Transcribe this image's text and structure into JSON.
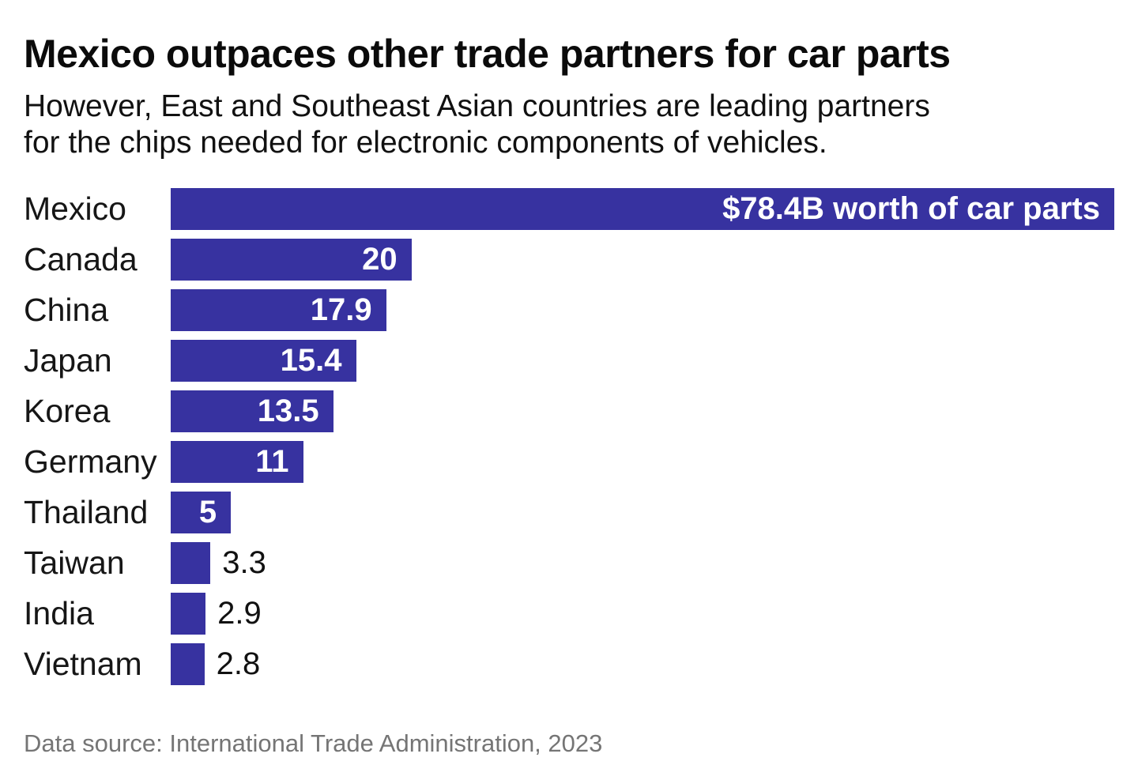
{
  "title": "Mexico outpaces other trade partners for car parts",
  "subtitle": {
    "full": "However, East and Southeast Asian countries are leading partners for the chips needed for electronic components of vehicles.",
    "lines": [
      "However, East and Southeast Asian countries are leading partners",
      "for the chips needed for electronic components of vehicles."
    ]
  },
  "source": "Data source: International Trade Administration, 2023",
  "colors": {
    "bar": "#3732a0",
    "value_inside_text": "#ffffff",
    "value_outside_text": "#111111",
    "category_text": "#161616",
    "title_text": "#0b0b0b",
    "source_text": "#757575",
    "background": "#ffffff"
  },
  "chart_data": {
    "type": "bar",
    "orientation": "horizontal",
    "title": "Mexico outpaces other trade partners for car parts",
    "xlim": [
      0,
      78.4
    ],
    "grid": false,
    "legend": false,
    "categories": [
      "Mexico",
      "Canada",
      "China",
      "Japan",
      "Korea",
      "Germany",
      "Thailand",
      "Taiwan",
      "India",
      "Vietnam"
    ],
    "values": [
      78.4,
      20,
      17.9,
      15.4,
      13.5,
      11,
      5,
      3.3,
      2.9,
      2.8
    ],
    "value_labels": [
      "$78.4B worth of car parts",
      "20",
      "17.9",
      "15.4",
      "13.5",
      "11",
      "5",
      "3.3",
      "2.9",
      "2.8"
    ],
    "label_placement": [
      "inside",
      "inside",
      "inside",
      "inside",
      "inside",
      "inside",
      "inside",
      "outside",
      "outside",
      "outside"
    ]
  }
}
